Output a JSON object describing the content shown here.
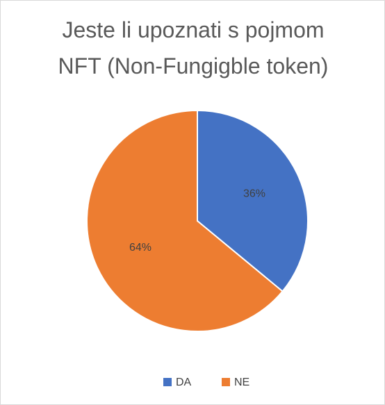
{
  "chart_data": {
    "type": "pie",
    "title": "Jeste li upoznati s pojmom NFT (Non-Fungigble token)",
    "categories": [
      "DA",
      "NE"
    ],
    "values": [
      36,
      64
    ],
    "value_labels": [
      "36%",
      "64%"
    ],
    "colors": [
      "#4472c4",
      "#ed7d31"
    ],
    "legend": "bottom"
  }
}
